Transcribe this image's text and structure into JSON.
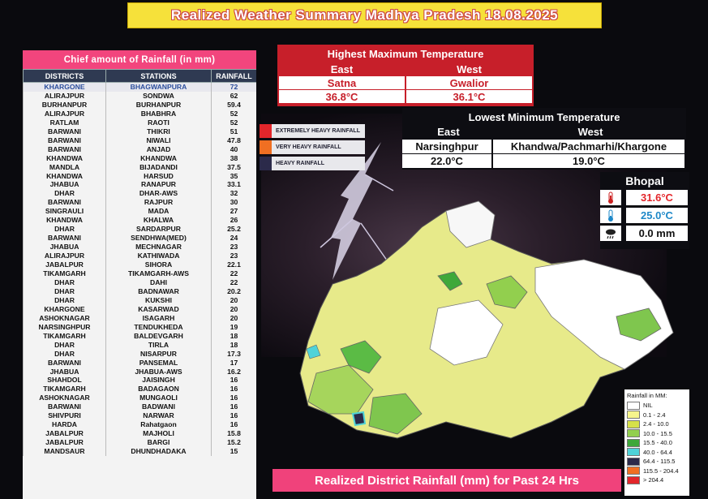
{
  "title": "Realized Weather Summary Madhya Pradesh 18.08.2025",
  "rainfall_table": {
    "title": "Chief amount of Rainfall (in mm)",
    "headers": [
      "DISTRICTS",
      "STATIONS",
      "RAINFALL"
    ],
    "rows": [
      [
        "KHARGONE",
        "BHAGWANPURA",
        "72"
      ],
      [
        "ALIRAJPUR",
        "SONDWA",
        "62"
      ],
      [
        "BURHANPUR",
        "BURHANPUR",
        "59.4"
      ],
      [
        "ALIRAJPUR",
        "BHABHRA",
        "52"
      ],
      [
        "RATLAM",
        "RAOTI",
        "52"
      ],
      [
        "BARWANI",
        "THIKRI",
        "51"
      ],
      [
        "BARWANI",
        "NIWALI",
        "47.8"
      ],
      [
        "BARWANI",
        "ANJAD",
        "40"
      ],
      [
        "KHANDWA",
        "KHANDWA",
        "38"
      ],
      [
        "MANDLA",
        "BIJADANDI",
        "37.5"
      ],
      [
        "KHANDWA",
        "HARSUD",
        "35"
      ],
      [
        "JHABUA",
        "RANAPUR",
        "33.1"
      ],
      [
        "DHAR",
        "DHAR-AWS",
        "32"
      ],
      [
        "BARWANI",
        "RAJPUR",
        "30"
      ],
      [
        "SINGRAULI",
        "MADA",
        "27"
      ],
      [
        "KHANDWA",
        "KHALWA",
        "26"
      ],
      [
        "DHAR",
        "SARDARPUR",
        "25.2"
      ],
      [
        "BARWANI",
        "SENDHWA(MED)",
        "24"
      ],
      [
        "JHABUA",
        "MECHNAGAR",
        "23"
      ],
      [
        "ALIRAJPUR",
        "KATHIWADA",
        "23"
      ],
      [
        "JABALPUR",
        "SIHORA",
        "22.1"
      ],
      [
        "TIKAMGARH",
        "TIKAMGARH-AWS",
        "22"
      ],
      [
        "DHAR",
        "DAHI",
        "22"
      ],
      [
        "DHAR",
        "BADNAWAR",
        "20.2"
      ],
      [
        "DHAR",
        "KUKSHI",
        "20"
      ],
      [
        "KHARGONE",
        "KASARWAD",
        "20"
      ],
      [
        "ASHOKNAGAR",
        "ISAGARH",
        "20"
      ],
      [
        "NARSINGHPUR",
        "TENDUKHEDA",
        "19"
      ],
      [
        "TIKAMGARH",
        "BALDEVGARH",
        "18"
      ],
      [
        "DHAR",
        "TIRLA",
        "18"
      ],
      [
        "DHAR",
        "NISARPUR",
        "17.3"
      ],
      [
        "BARWANI",
        "PANSEMAL",
        "17"
      ],
      [
        "JHABUA",
        "JHABUA-AWS",
        "16.2"
      ],
      [
        "SHAHDOL",
        "JAISINGH",
        "16"
      ],
      [
        "TIKAMGARH",
        "BADAGAON",
        "16"
      ],
      [
        "ASHOKNAGAR",
        "MUNGAOLI",
        "16"
      ],
      [
        "BARWANI",
        "BADWANI",
        "16"
      ],
      [
        "SHIVPURI",
        "NARWAR",
        "16"
      ],
      [
        "HARDA",
        "Rahatgaon",
        "16"
      ],
      [
        "JABALPUR",
        "MAJHOLI",
        "15.8"
      ],
      [
        "JABALPUR",
        "BARGI",
        "15.2"
      ],
      [
        "MANDSAUR",
        "DHUNDHADAKA",
        "15"
      ]
    ]
  },
  "category_legend": [
    {
      "label": "EXTREMELY HEAVY RAINFALL",
      "color": "#e3262b"
    },
    {
      "label": "VERY HEAVY RAINFALL",
      "color": "#f06f22"
    },
    {
      "label": "HEAVY RAINFALL",
      "color": "#2b2a4a"
    }
  ],
  "max_temp": {
    "title": "Highest Maximum Temperature",
    "east_label": "East",
    "west_label": "West",
    "east_station": "Satna",
    "west_station": "Gwalior",
    "east_value": "36.8°C",
    "west_value": "36.1°C"
  },
  "min_temp": {
    "title": "Lowest Minimum Temperature",
    "east_label": "East",
    "west_label": "West",
    "east_station": "Narsinghpur",
    "west_station": "Khandwa/Pachmarhi/Khargone",
    "east_value": "22.0°C",
    "west_value": "19.0°C"
  },
  "bhopal": {
    "title": "Bhopal",
    "max_temp": "31.6°C",
    "max_color": "#e3262b",
    "max_icon": "thermometer-hot-icon",
    "min_temp": "25.0°C",
    "min_color": "#1e88c8",
    "min_icon": "thermometer-cold-icon",
    "rain": "0.0 mm",
    "rain_icon": "rain-cloud-icon"
  },
  "rain_legend": {
    "title": "Rainfall in MM:",
    "items": [
      {
        "label": "NIL",
        "color": "#ffffff"
      },
      {
        "label": "0.1 - 2.4",
        "color": "#f6f58c"
      },
      {
        "label": "2.4 - 10.0",
        "color": "#d6e04a"
      },
      {
        "label": "10.0 - 15.5",
        "color": "#92cf4e"
      },
      {
        "label": "15.5 - 40.0",
        "color": "#3fa83a"
      },
      {
        "label": "40.0 - 64.4",
        "color": "#4fd3d8"
      },
      {
        "label": "64.4 - 115.5",
        "color": "#2b2a4a"
      },
      {
        "label": "115.5 - 204.4",
        "color": "#f06f22"
      },
      {
        "label": "> 204.4",
        "color": "#e3262b"
      }
    ]
  },
  "footer": "Realized District Rainfall (mm) for Past 24 Hrs"
}
